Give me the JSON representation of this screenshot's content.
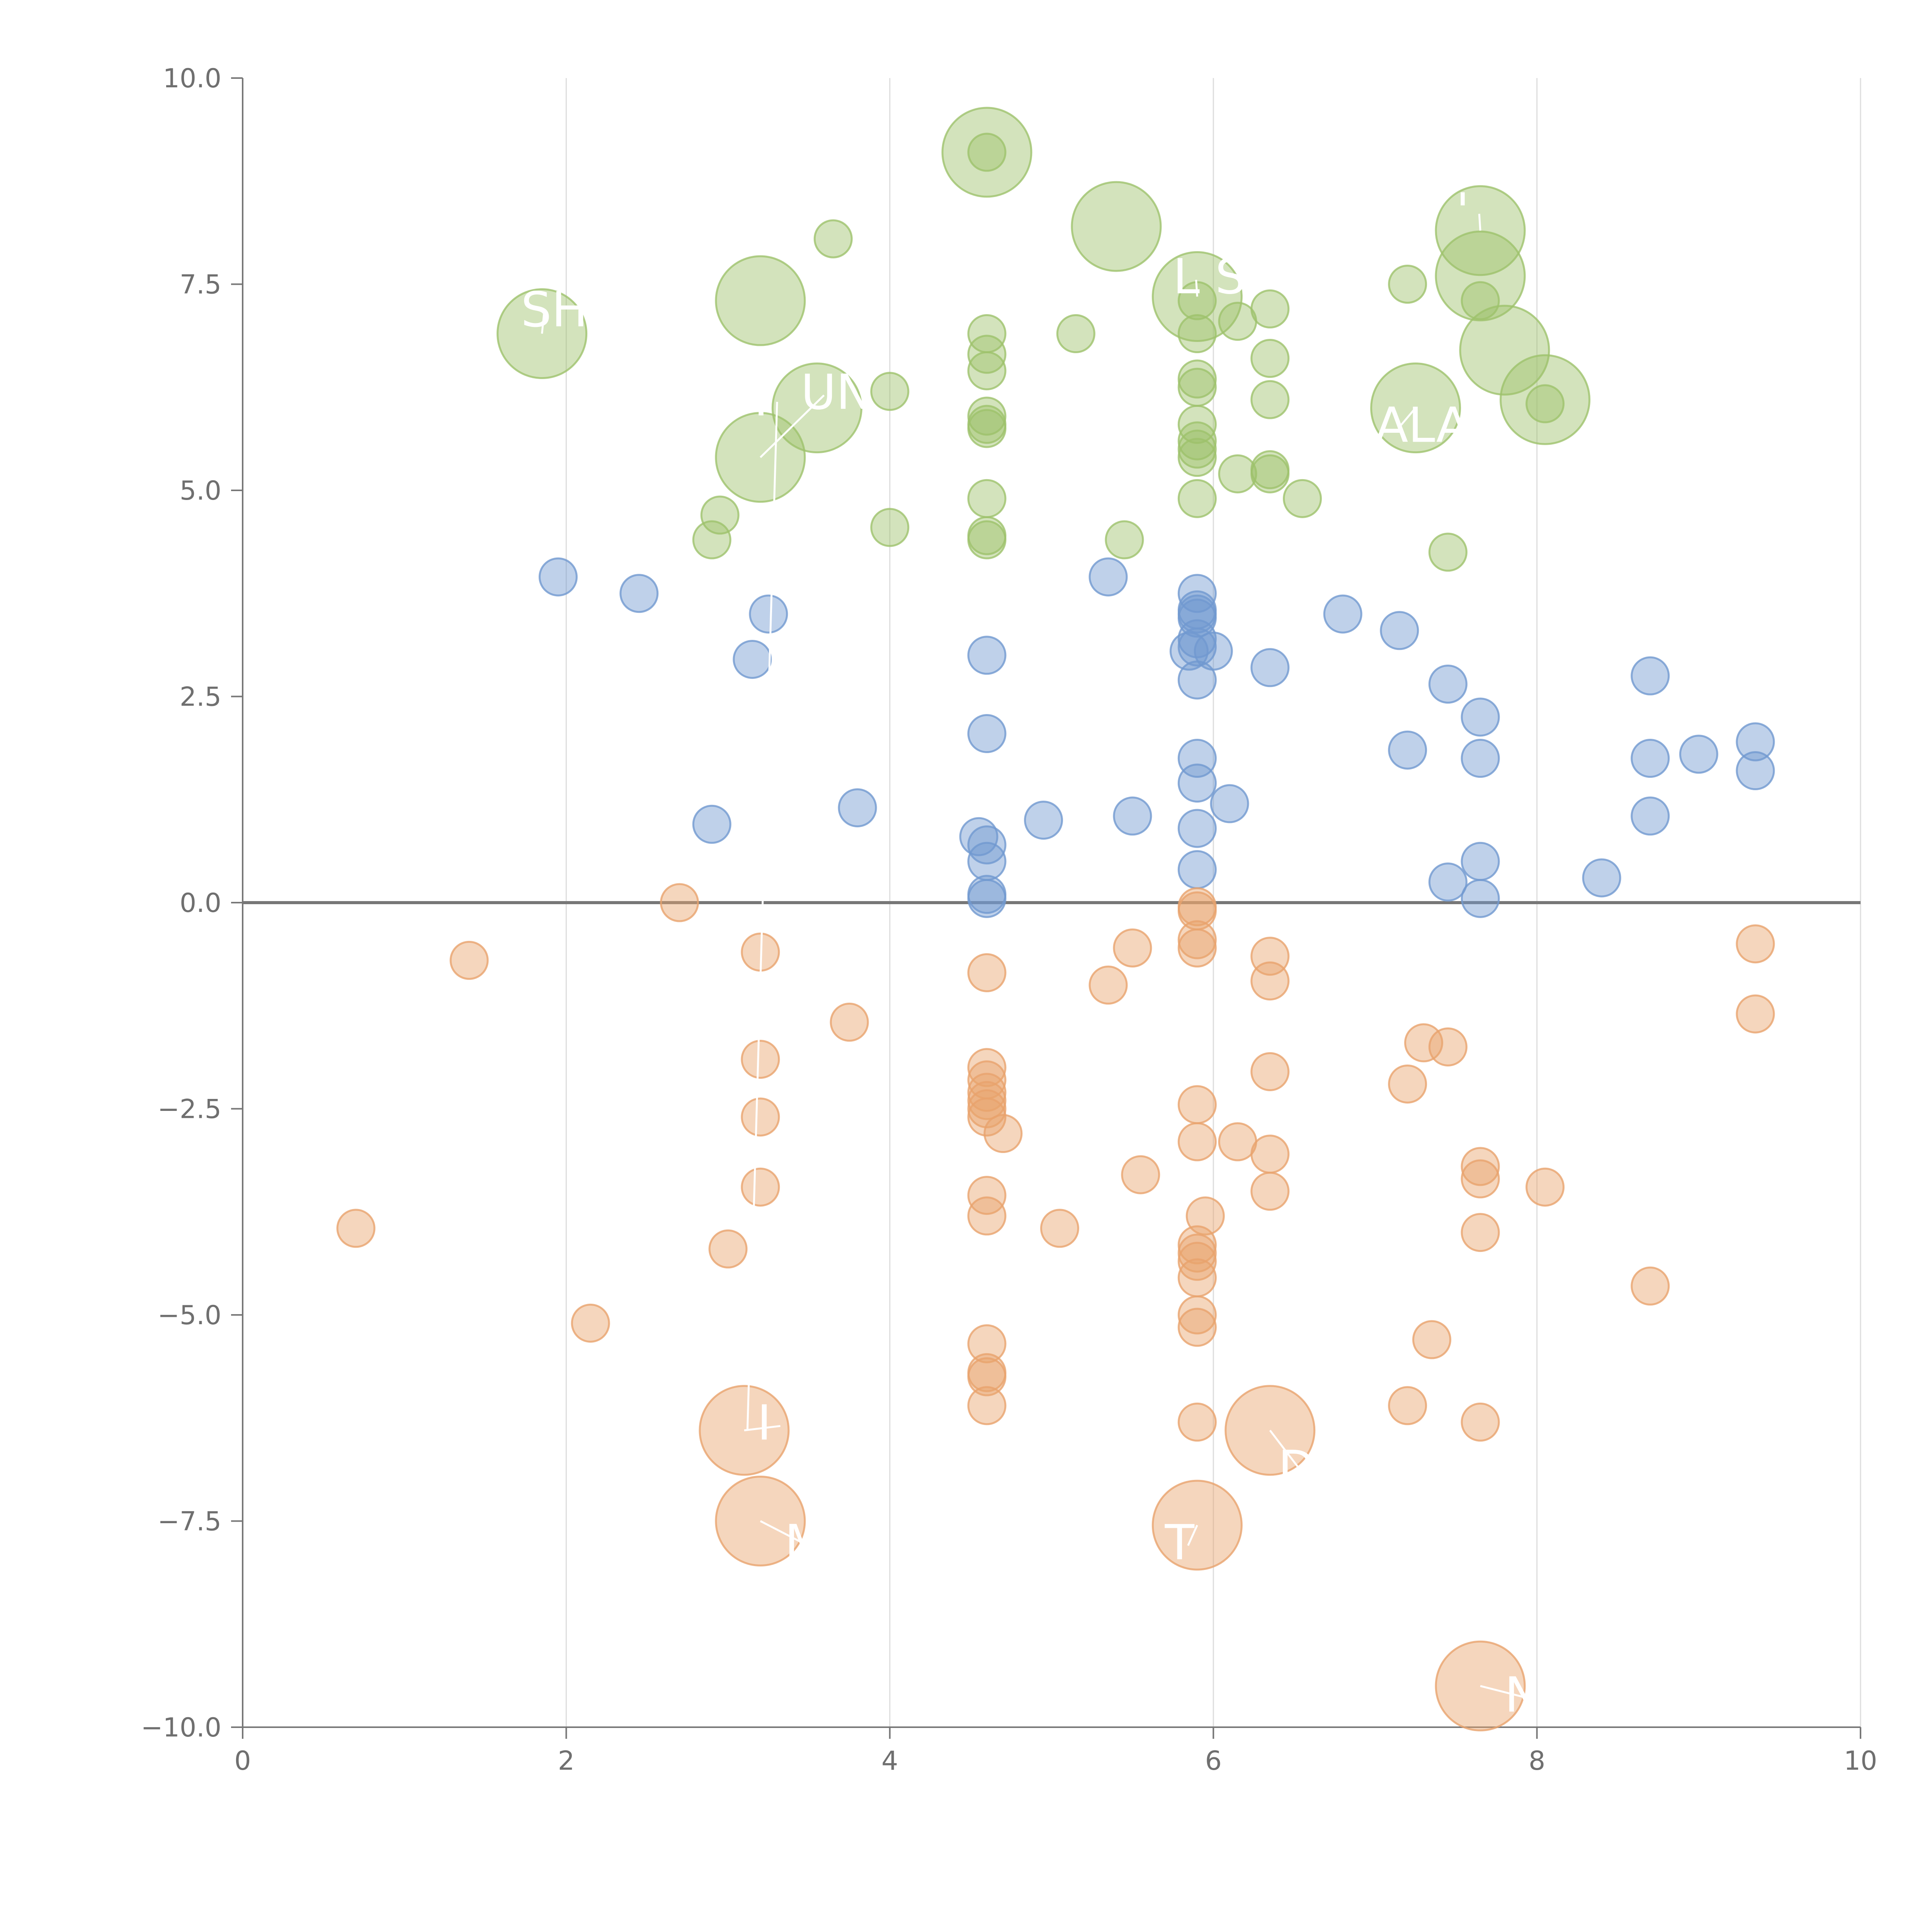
{
  "chart_data": {
    "type": "scatter",
    "title": "",
    "xlabel": "",
    "ylabel": "",
    "xlim": [
      0,
      10
    ],
    "ylim": [
      -10,
      10
    ],
    "x_ticks": [
      0,
      2,
      4,
      6,
      8,
      10
    ],
    "y_ticks": [
      -10,
      -7.5,
      -5,
      -2.5,
      0,
      2.5,
      5,
      7.5,
      10
    ],
    "x_tick_labels": [
      "0",
      "2",
      "4",
      "6",
      "8",
      "10"
    ],
    "y_tick_labels": [
      "−10.0",
      "−7.5",
      "−5.0",
      "−2.5",
      "0.0",
      "2.5",
      "5.0",
      "7.5",
      "10.0"
    ],
    "grid": "vertical",
    "legend": "none",
    "zero_line": 0,
    "series": [
      {
        "color": "#9dc26b",
        "points": [
          [
            4.6,
            9.1,
            3
          ],
          [
            4.6,
            9.1,
            1
          ],
          [
            5.4,
            8.2,
            3
          ],
          [
            3.65,
            8.05,
            1
          ],
          [
            7.65,
            8.15,
            3
          ],
          [
            7.65,
            7.6,
            3
          ],
          [
            7.65,
            7.3,
            1
          ],
          [
            3.2,
            7.3,
            3
          ],
          [
            1.85,
            6.9,
            3
          ],
          [
            5.9,
            7.35,
            3
          ],
          [
            5.9,
            7.3,
            1
          ],
          [
            6.35,
            7.2,
            1
          ],
          [
            7.2,
            7.5,
            1
          ],
          [
            6.15,
            7.05,
            1
          ],
          [
            4.6,
            6.9,
            1
          ],
          [
            5.15,
            6.9,
            1
          ],
          [
            5.9,
            6.9,
            1
          ],
          [
            7.8,
            6.7,
            3
          ],
          [
            4.6,
            6.65,
            1
          ],
          [
            6.35,
            6.6,
            1
          ],
          [
            4.6,
            6.45,
            1
          ],
          [
            5.9,
            6.35,
            1
          ],
          [
            5.9,
            6.25,
            1
          ],
          [
            4.0,
            6.2,
            1
          ],
          [
            3.55,
            6.0,
            3
          ],
          [
            6.35,
            6.1,
            1
          ],
          [
            8.05,
            6.1,
            3
          ],
          [
            8.05,
            6.05,
            1
          ],
          [
            7.25,
            6.0,
            3
          ],
          [
            4.6,
            5.9,
            1
          ],
          [
            4.6,
            5.8,
            1
          ],
          [
            4.6,
            5.75,
            1
          ],
          [
            5.9,
            5.8,
            1
          ],
          [
            5.9,
            5.6,
            1
          ],
          [
            5.9,
            5.5,
            1
          ],
          [
            5.9,
            5.4,
            1
          ],
          [
            3.2,
            5.4,
            3
          ],
          [
            6.35,
            5.25,
            1
          ],
          [
            6.35,
            5.2,
            1
          ],
          [
            6.15,
            5.2,
            1
          ],
          [
            6.55,
            4.9,
            1
          ],
          [
            5.9,
            4.9,
            1
          ],
          [
            4.6,
            4.9,
            1
          ],
          [
            2.95,
            4.7,
            1
          ],
          [
            4.0,
            4.55,
            1
          ],
          [
            2.9,
            4.4,
            1
          ],
          [
            4.6,
            4.45,
            1
          ],
          [
            4.6,
            4.4,
            1
          ],
          [
            5.45,
            4.4,
            1
          ],
          [
            7.45,
            4.25,
            1
          ]
        ]
      },
      {
        "color": "#7099d0",
        "points": [
          [
            1.95,
            3.95,
            1
          ],
          [
            2.45,
            3.75,
            1
          ],
          [
            3.25,
            3.5,
            1
          ],
          [
            3.15,
            2.95,
            1
          ],
          [
            5.35,
            3.95,
            1
          ],
          [
            5.9,
            3.75,
            1
          ],
          [
            5.9,
            3.55,
            1
          ],
          [
            5.9,
            3.5,
            1
          ],
          [
            5.9,
            3.45,
            1
          ],
          [
            5.9,
            3.2,
            1
          ],
          [
            5.9,
            3.1,
            1
          ],
          [
            5.85,
            3.05,
            1
          ],
          [
            6.0,
            3.05,
            1
          ],
          [
            5.9,
            2.7,
            1
          ],
          [
            4.6,
            3.0,
            1
          ],
          [
            6.8,
            3.5,
            1
          ],
          [
            7.15,
            3.3,
            1
          ],
          [
            6.35,
            2.85,
            1
          ],
          [
            7.45,
            2.65,
            1
          ],
          [
            8.7,
            2.75,
            1
          ],
          [
            7.65,
            2.25,
            1
          ],
          [
            4.6,
            2.05,
            1
          ],
          [
            7.2,
            1.85,
            1
          ],
          [
            7.65,
            1.75,
            1
          ],
          [
            8.7,
            1.75,
            1
          ],
          [
            9.0,
            1.8,
            1
          ],
          [
            9.35,
            1.95,
            1
          ],
          [
            9.35,
            1.6,
            1
          ],
          [
            5.9,
            1.75,
            1
          ],
          [
            5.9,
            1.45,
            1
          ],
          [
            6.1,
            1.2,
            1
          ],
          [
            3.8,
            1.15,
            1
          ],
          [
            5.5,
            1.05,
            1
          ],
          [
            4.95,
            1.0,
            1
          ],
          [
            2.9,
            0.95,
            1
          ],
          [
            5.9,
            0.9,
            1
          ],
          [
            8.7,
            1.05,
            1
          ],
          [
            4.55,
            0.8,
            1
          ],
          [
            4.6,
            0.7,
            1
          ],
          [
            4.6,
            0.5,
            1
          ],
          [
            5.9,
            0.4,
            1
          ],
          [
            7.65,
            0.5,
            1
          ],
          [
            7.45,
            0.25,
            1
          ],
          [
            8.4,
            0.3,
            1
          ],
          [
            4.6,
            0.1,
            1
          ],
          [
            4.6,
            0.05,
            1
          ],
          [
            7.65,
            0.05,
            1
          ]
        ]
      },
      {
        "color": "#e8a36d",
        "points": [
          [
            2.7,
            0.0,
            1
          ],
          [
            5.9,
            -0.05,
            1
          ],
          [
            5.9,
            -0.1,
            1
          ],
          [
            1.4,
            -0.7,
            1
          ],
          [
            3.2,
            -0.6,
            1
          ],
          [
            5.5,
            -0.55,
            1
          ],
          [
            5.9,
            -0.45,
            1
          ],
          [
            5.9,
            -0.55,
            1
          ],
          [
            6.35,
            -0.65,
            1
          ],
          [
            9.35,
            -0.5,
            1
          ],
          [
            4.6,
            -0.85,
            1
          ],
          [
            6.35,
            -0.95,
            1
          ],
          [
            5.35,
            -1.0,
            1
          ],
          [
            9.35,
            -1.35,
            1
          ],
          [
            3.75,
            -1.45,
            1
          ],
          [
            7.3,
            -1.7,
            1
          ],
          [
            7.45,
            -1.75,
            1
          ],
          [
            3.2,
            -1.9,
            1
          ],
          [
            4.6,
            -2.0,
            1
          ],
          [
            6.35,
            -2.05,
            1
          ],
          [
            4.6,
            -2.15,
            1
          ],
          [
            7.2,
            -2.2,
            1
          ],
          [
            4.6,
            -2.3,
            1
          ],
          [
            4.6,
            -2.4,
            1
          ],
          [
            5.9,
            -2.45,
            1
          ],
          [
            4.6,
            -2.5,
            1
          ],
          [
            3.2,
            -2.6,
            1
          ],
          [
            4.6,
            -2.6,
            1
          ],
          [
            4.7,
            -2.8,
            1
          ],
          [
            5.9,
            -2.9,
            1
          ],
          [
            6.15,
            -2.9,
            1
          ],
          [
            6.35,
            -3.05,
            1
          ],
          [
            7.65,
            -3.2,
            1
          ],
          [
            7.65,
            -3.35,
            1
          ],
          [
            5.55,
            -3.3,
            1
          ],
          [
            3.2,
            -3.45,
            1
          ],
          [
            8.05,
            -3.45,
            1
          ],
          [
            6.35,
            -3.5,
            1
          ],
          [
            4.6,
            -3.55,
            1
          ],
          [
            4.6,
            -3.8,
            1
          ],
          [
            5.95,
            -3.8,
            1
          ],
          [
            0.7,
            -3.95,
            1
          ],
          [
            5.05,
            -3.95,
            1
          ],
          [
            7.65,
            -4.0,
            1
          ],
          [
            5.9,
            -4.15,
            1
          ],
          [
            3.0,
            -4.2,
            1
          ],
          [
            5.9,
            -4.25,
            1
          ],
          [
            5.9,
            -4.35,
            1
          ],
          [
            5.9,
            -4.55,
            1
          ],
          [
            8.7,
            -4.65,
            1
          ],
          [
            5.9,
            -5.0,
            1
          ],
          [
            2.15,
            -5.1,
            1
          ],
          [
            5.9,
            -5.15,
            1
          ],
          [
            7.35,
            -5.3,
            1
          ],
          [
            4.6,
            -5.35,
            1
          ],
          [
            4.6,
            -5.7,
            1
          ],
          [
            4.6,
            -5.75,
            1
          ],
          [
            7.2,
            -6.1,
            1
          ],
          [
            4.6,
            -6.1,
            1
          ],
          [
            5.9,
            -6.3,
            1
          ],
          [
            7.65,
            -6.3,
            1
          ],
          [
            3.1,
            -6.4,
            3
          ],
          [
            6.35,
            -6.4,
            3
          ],
          [
            3.2,
            -7.5,
            3
          ],
          [
            5.9,
            -7.55,
            3
          ],
          [
            7.65,
            -9.5,
            3
          ]
        ]
      }
    ],
    "annotations": [
      {
        "text": "SHO",
        "x": 1.72,
        "y": 7.2,
        "px": 1.85,
        "py": 6.9
      },
      {
        "text": "I",
        "x": 3.16,
        "y": 6.12,
        "px": 3.12,
        "py": -6.4
      },
      {
        "text": "UN",
        "x": 3.45,
        "y": 6.2,
        "px": 3.2,
        "py": 5.4
      },
      {
        "text": "L S",
        "x": 5.75,
        "y": 7.6,
        "px": 5.9,
        "py": 7.35
      },
      {
        "text": "'",
        "x": 7.5,
        "y": 8.4,
        "px": 7.65,
        "py": 8.15
      },
      {
        "text": "ALA",
        "x": 7.0,
        "y": 5.8,
        "px": 7.25,
        "py": 6.0
      },
      {
        "text": "I",
        "x": 3.18,
        "y": -6.3,
        "px": 3.1,
        "py": -6.4
      },
      {
        "text": "D",
        "x": 6.4,
        "y": -6.85,
        "px": 6.35,
        "py": -6.4
      },
      {
        "text": "M",
        "x": 3.35,
        "y": -7.75,
        "px": 3.2,
        "py": -7.5
      },
      {
        "text": "T",
        "x": 5.7,
        "y": -7.75,
        "px": 5.9,
        "py": -7.55
      },
      {
        "text": "NE",
        "x": 7.8,
        "y": -9.6,
        "px": 7.65,
        "py": -9.5
      }
    ]
  }
}
